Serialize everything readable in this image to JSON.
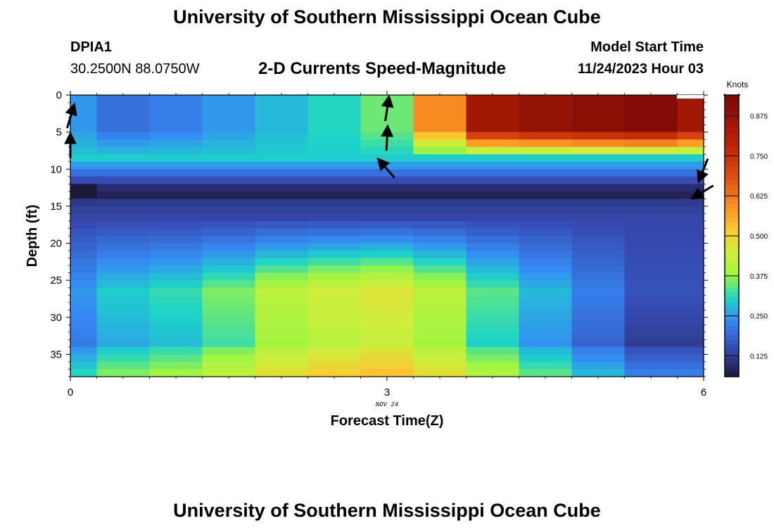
{
  "page": {
    "title": "University of Southern Mississippi Ocean Cube",
    "footer_title": "University of Southern Mississippi Ocean Cube",
    "station_id": "DPIA1",
    "station_coords": "30.2500N  88.0750W",
    "subtitle": "2-D Currents Speed-Magnitude",
    "model_start_label": "Model Start Time",
    "model_start_value": "11/24/2023 Hour 03",
    "date_label": "NOV 24"
  },
  "chart_data": {
    "type": "heatmap",
    "title": "2-D Currents Speed-Magnitude",
    "xlabel": "Forecast Time(Z)",
    "ylabel": "Depth (ft)",
    "xlim": [
      0,
      6
    ],
    "ylim": [
      38,
      0
    ],
    "x_ticks": [
      0,
      3,
      6
    ],
    "x_tick_labels": [
      "0",
      "3",
      "6"
    ],
    "y_ticks": [
      0,
      5,
      10,
      15,
      20,
      25,
      30,
      35
    ],
    "y_tick_labels": [
      "0",
      "5",
      "10",
      "15",
      "20",
      "25",
      "30",
      "35"
    ],
    "time_steps": [
      0,
      0.5,
      1,
      1.5,
      2,
      2.5,
      3,
      3.5,
      4,
      4.5,
      5,
      5.5,
      6
    ],
    "depth_bin_ft": 1,
    "colorbar": {
      "title": "Knots",
      "min": 0.06,
      "max": 0.94,
      "tick_values": [
        0.125,
        0.25,
        0.375,
        0.5,
        0.625,
        0.75,
        0.875
      ],
      "tick_labels": [
        "0.125",
        "0.250",
        "0.375",
        "0.500",
        "0.625",
        "0.750",
        "0.875"
      ]
    },
    "profiles": {
      "upper_speed": [
        0.25,
        0.2,
        0.22,
        0.25,
        0.28,
        0.31,
        0.35,
        0.6,
        0.85,
        0.88,
        0.9,
        0.92,
        0.85
      ],
      "bottom_speed": [
        0.25,
        0.3,
        0.32,
        0.36,
        0.42,
        0.45,
        0.47,
        0.42,
        0.34,
        0.28,
        0.22,
        0.16,
        0.16
      ]
    },
    "vectors": [
      {
        "t": 0,
        "depth": 3,
        "u": 0.3,
        "v": 1
      },
      {
        "t": 0,
        "depth": 7,
        "u": 0.0,
        "v": 1
      },
      {
        "t": 3,
        "depth": 2,
        "u": 0.15,
        "v": 1
      },
      {
        "t": 3,
        "depth": 6,
        "u": 0.05,
        "v": 1
      },
      {
        "t": 3,
        "depth": 10,
        "u": -0.7,
        "v": 0.8
      },
      {
        "t": 6,
        "depth": 10,
        "u": -0.4,
        "v": -1
      },
      {
        "t": 6,
        "depth": 13,
        "u": -1,
        "v": -0.6
      }
    ]
  }
}
